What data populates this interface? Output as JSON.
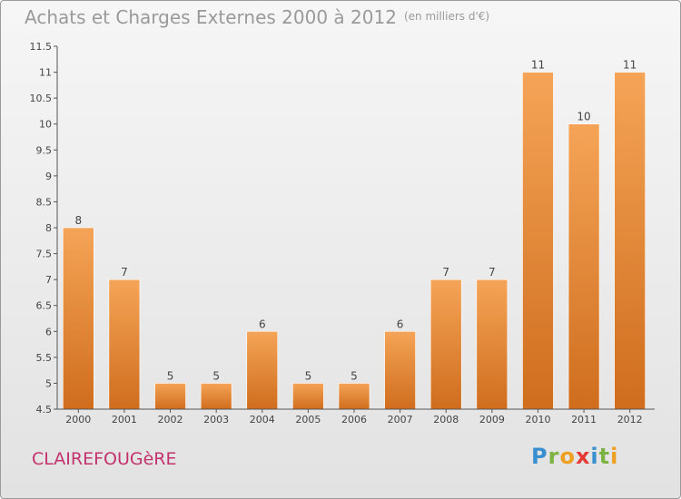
{
  "header": {
    "title": "Achats et Charges Externes 2000 à 2012",
    "unit": "(en milliers d'€)"
  },
  "footer": {
    "location": "CLAIREFOUGèRE",
    "brand": "Proxiti"
  },
  "colors": {
    "bar_top": "#f5a457",
    "bar_bottom": "#cf6d1d",
    "axis": "#555555",
    "label": "#444444",
    "location": "#c4326e"
  },
  "chart_data": {
    "type": "bar",
    "title": "Achats et Charges Externes 2000 à 2012",
    "subtitle": "(en milliers d'€)",
    "categories": [
      "2000",
      "2001",
      "2002",
      "2003",
      "2004",
      "2005",
      "2006",
      "2007",
      "2008",
      "2009",
      "2010",
      "2011",
      "2012"
    ],
    "values": [
      8,
      7,
      5,
      5,
      6,
      5,
      5,
      6,
      7,
      7,
      11,
      10,
      11
    ],
    "value_labels": [
      "8",
      "7",
      "5",
      "5",
      "6",
      "5",
      "5",
      "6",
      "7",
      "7",
      "11",
      "10",
      "11"
    ],
    "ylim": [
      4.5,
      11.5
    ],
    "yticks": [
      4.5,
      5,
      5.5,
      6,
      6.5,
      7,
      7.5,
      8,
      8.5,
      9,
      9.5,
      10,
      10.5,
      11,
      11.5
    ],
    "ytick_labels": [
      "4.5",
      "5",
      "5.5",
      "6",
      "6.5",
      "7",
      "7.5",
      "8",
      "8.5",
      "9",
      "9.5",
      "10",
      "10.5",
      "11",
      "11.5"
    ],
    "grid": false,
    "xlabel": "",
    "ylabel": ""
  }
}
